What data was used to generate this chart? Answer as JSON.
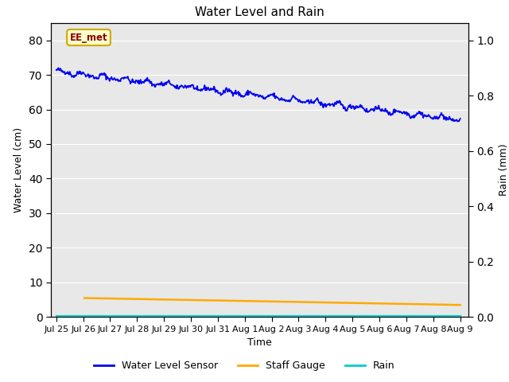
{
  "title": "Water Level and Rain",
  "xlabel": "Time",
  "ylabel_left": "Water Level (cm)",
  "ylabel_right": "Rain (mm)",
  "annotation_text": "EE_met",
  "xlim_start": -0.2,
  "xlim_end": 15.3,
  "ylim_left": [
    0,
    85
  ],
  "ylim_right": [
    0,
    1.0625
  ],
  "xtick_labels": [
    "Jul 25",
    "Jul 26",
    "Jul 27",
    "Jul 28",
    "Jul 29",
    "Jul 30",
    "Jul 31",
    "Aug 1",
    "Aug 2",
    "Aug 3",
    "Aug 4",
    "Aug 5",
    "Aug 6",
    "Aug 7",
    "Aug 8",
    "Aug 9"
  ],
  "xtick_positions": [
    0,
    1,
    2,
    3,
    4,
    5,
    6,
    7,
    8,
    9,
    10,
    11,
    12,
    13,
    14,
    15
  ],
  "ytick_left": [
    0,
    10,
    20,
    30,
    40,
    50,
    60,
    70,
    80
  ],
  "ytick_right": [
    0.0,
    0.2,
    0.4,
    0.6,
    0.8,
    1.0
  ],
  "bg_color": "#e8e8e8",
  "water_level_color": "#0000ee",
  "staff_gauge_color": "#ffaa00",
  "rain_color": "#00cccc",
  "legend_labels": [
    "Water Level Sensor",
    "Staff Gauge",
    "Rain"
  ],
  "water_level_linewidth": 1.3,
  "staff_gauge_linewidth": 1.8,
  "rain_linewidth": 1.5,
  "title_fontsize": 11,
  "axis_fontsize": 9,
  "tick_fontsize": 8
}
